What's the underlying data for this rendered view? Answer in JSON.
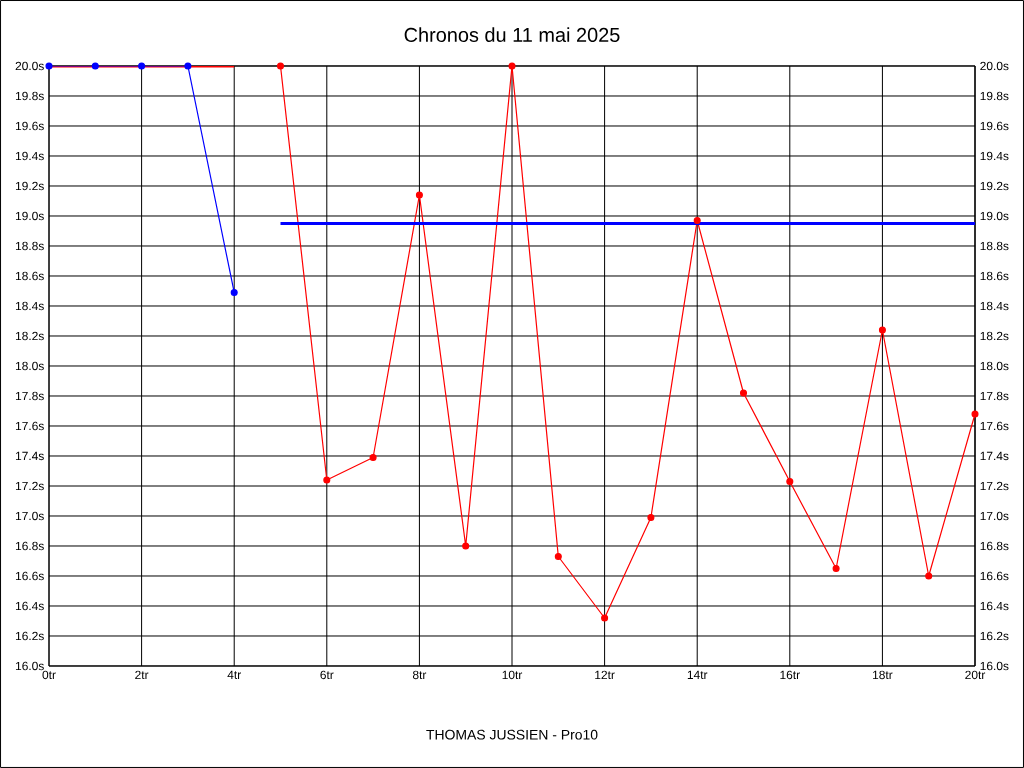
{
  "chart_data": {
    "type": "line",
    "title": "Chronos du 11 mai 2025",
    "annotations": [
      "THOMAS JUSSIEN - Pro10"
    ],
    "series": [
      {
        "color": "#ff0000",
        "marker": "none",
        "x": [
          0,
          4
        ],
        "values": [
          20.0,
          20.0
        ]
      },
      {
        "color": "#0000ff",
        "marker": "circle",
        "x": [
          0,
          1,
          2,
          3,
          4
        ],
        "values": [
          20.0,
          20.0,
          20.0,
          20.0,
          18.49
        ]
      },
      {
        "color": "#ff0000",
        "marker": "circle",
        "x": [
          5,
          6,
          7,
          8,
          9,
          10,
          11,
          12,
          13,
          14,
          15,
          16,
          17,
          18,
          19,
          20
        ],
        "values": [
          20.0,
          17.24,
          17.39,
          19.14,
          16.8,
          20.0,
          16.73,
          16.32,
          16.99,
          18.97,
          17.82,
          17.23,
          16.65,
          18.24,
          16.6,
          17.68
        ]
      },
      {
        "color": "#0000ff",
        "marker": "none",
        "x": [
          5,
          20
        ],
        "values": [
          18.95,
          18.95
        ]
      }
    ],
    "xlim": [
      0,
      20
    ],
    "xticks": [
      {
        "value": 0,
        "label": "0tr"
      },
      {
        "value": 2,
        "label": "2tr"
      },
      {
        "value": 4,
        "label": "4tr"
      },
      {
        "value": 6,
        "label": "6tr"
      },
      {
        "value": 8,
        "label": "8tr"
      },
      {
        "value": 10,
        "label": "10tr"
      },
      {
        "value": 12,
        "label": "12tr"
      },
      {
        "value": 14,
        "label": "14tr"
      },
      {
        "value": 16,
        "label": "16tr"
      },
      {
        "value": 18,
        "label": "18tr"
      },
      {
        "value": 20,
        "label": "20tr"
      }
    ],
    "ylim": [
      16.0,
      20.0
    ],
    "yticks": [
      {
        "value": 16.0,
        "label": "16.0s"
      },
      {
        "value": 16.2,
        "label": "16.2s"
      },
      {
        "value": 16.4,
        "label": "16.4s"
      },
      {
        "value": 16.6,
        "label": "16.6s"
      },
      {
        "value": 16.8,
        "label": "16.8s"
      },
      {
        "value": 17.0,
        "label": "17.0s"
      },
      {
        "value": 17.2,
        "label": "17.2s"
      },
      {
        "value": 17.4,
        "label": "17.4s"
      },
      {
        "value": 17.6,
        "label": "17.6s"
      },
      {
        "value": 17.8,
        "label": "17.8s"
      },
      {
        "value": 18.0,
        "label": "18.0s"
      },
      {
        "value": 18.2,
        "label": "18.2s"
      },
      {
        "value": 18.4,
        "label": "18.4s"
      },
      {
        "value": 18.6,
        "label": "18.6s"
      },
      {
        "value": 18.8,
        "label": "18.8s"
      },
      {
        "value": 19.0,
        "label": "19.0s"
      },
      {
        "value": 19.2,
        "label": "19.2s"
      },
      {
        "value": 19.4,
        "label": "19.4s"
      },
      {
        "value": 19.6,
        "label": "19.6s"
      },
      {
        "value": 19.8,
        "label": "19.8s"
      },
      {
        "value": 20.0,
        "label": "20.0s"
      }
    ],
    "y2lim": [
      16.0,
      20.0
    ],
    "y2ticks": [
      {
        "value": 16.0,
        "label": "16.0s"
      },
      {
        "value": 16.2,
        "label": "16.2s"
      },
      {
        "value": 16.4,
        "label": "16.4s"
      },
      {
        "value": 16.6,
        "label": "16.6s"
      },
      {
        "value": 16.8,
        "label": "16.8s"
      },
      {
        "value": 17.0,
        "label": "17.0s"
      },
      {
        "value": 17.2,
        "label": "17.2s"
      },
      {
        "value": 17.4,
        "label": "17.4s"
      },
      {
        "value": 17.6,
        "label": "17.6s"
      },
      {
        "value": 17.8,
        "label": "17.8s"
      },
      {
        "value": 18.0,
        "label": "18.0s"
      },
      {
        "value": 18.2,
        "label": "18.2s"
      },
      {
        "value": 18.4,
        "label": "18.4s"
      },
      {
        "value": 18.6,
        "label": "18.6s"
      },
      {
        "value": 18.8,
        "label": "18.8s"
      },
      {
        "value": 19.0,
        "label": "19.0s"
      },
      {
        "value": 19.2,
        "label": "19.2s"
      },
      {
        "value": 19.4,
        "label": "19.4s"
      },
      {
        "value": 19.6,
        "label": "19.6s"
      },
      {
        "value": 19.8,
        "label": "19.8s"
      },
      {
        "value": 20.0,
        "label": "20.0s"
      }
    ],
    "grid": true
  }
}
